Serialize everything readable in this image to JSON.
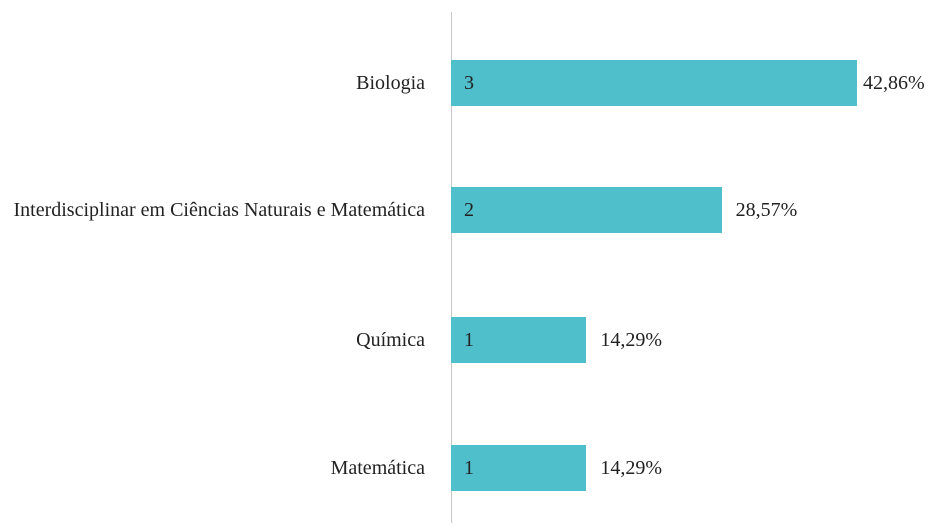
{
  "chart_data": {
    "type": "bar",
    "orientation": "horizontal",
    "categories": [
      "Biologia",
      "Interdisciplinar em Ciências Naturais e Matemática",
      "Química",
      "Matemática"
    ],
    "values": [
      3,
      2,
      1,
      1
    ],
    "shares": [
      42.86,
      28.57,
      14.29,
      14.29
    ],
    "share_labels": [
      "42,86%",
      "28,57%",
      "14,29%",
      "14,29%"
    ],
    "color": "#4fbfcb",
    "xlim": [
      0,
      3
    ]
  }
}
